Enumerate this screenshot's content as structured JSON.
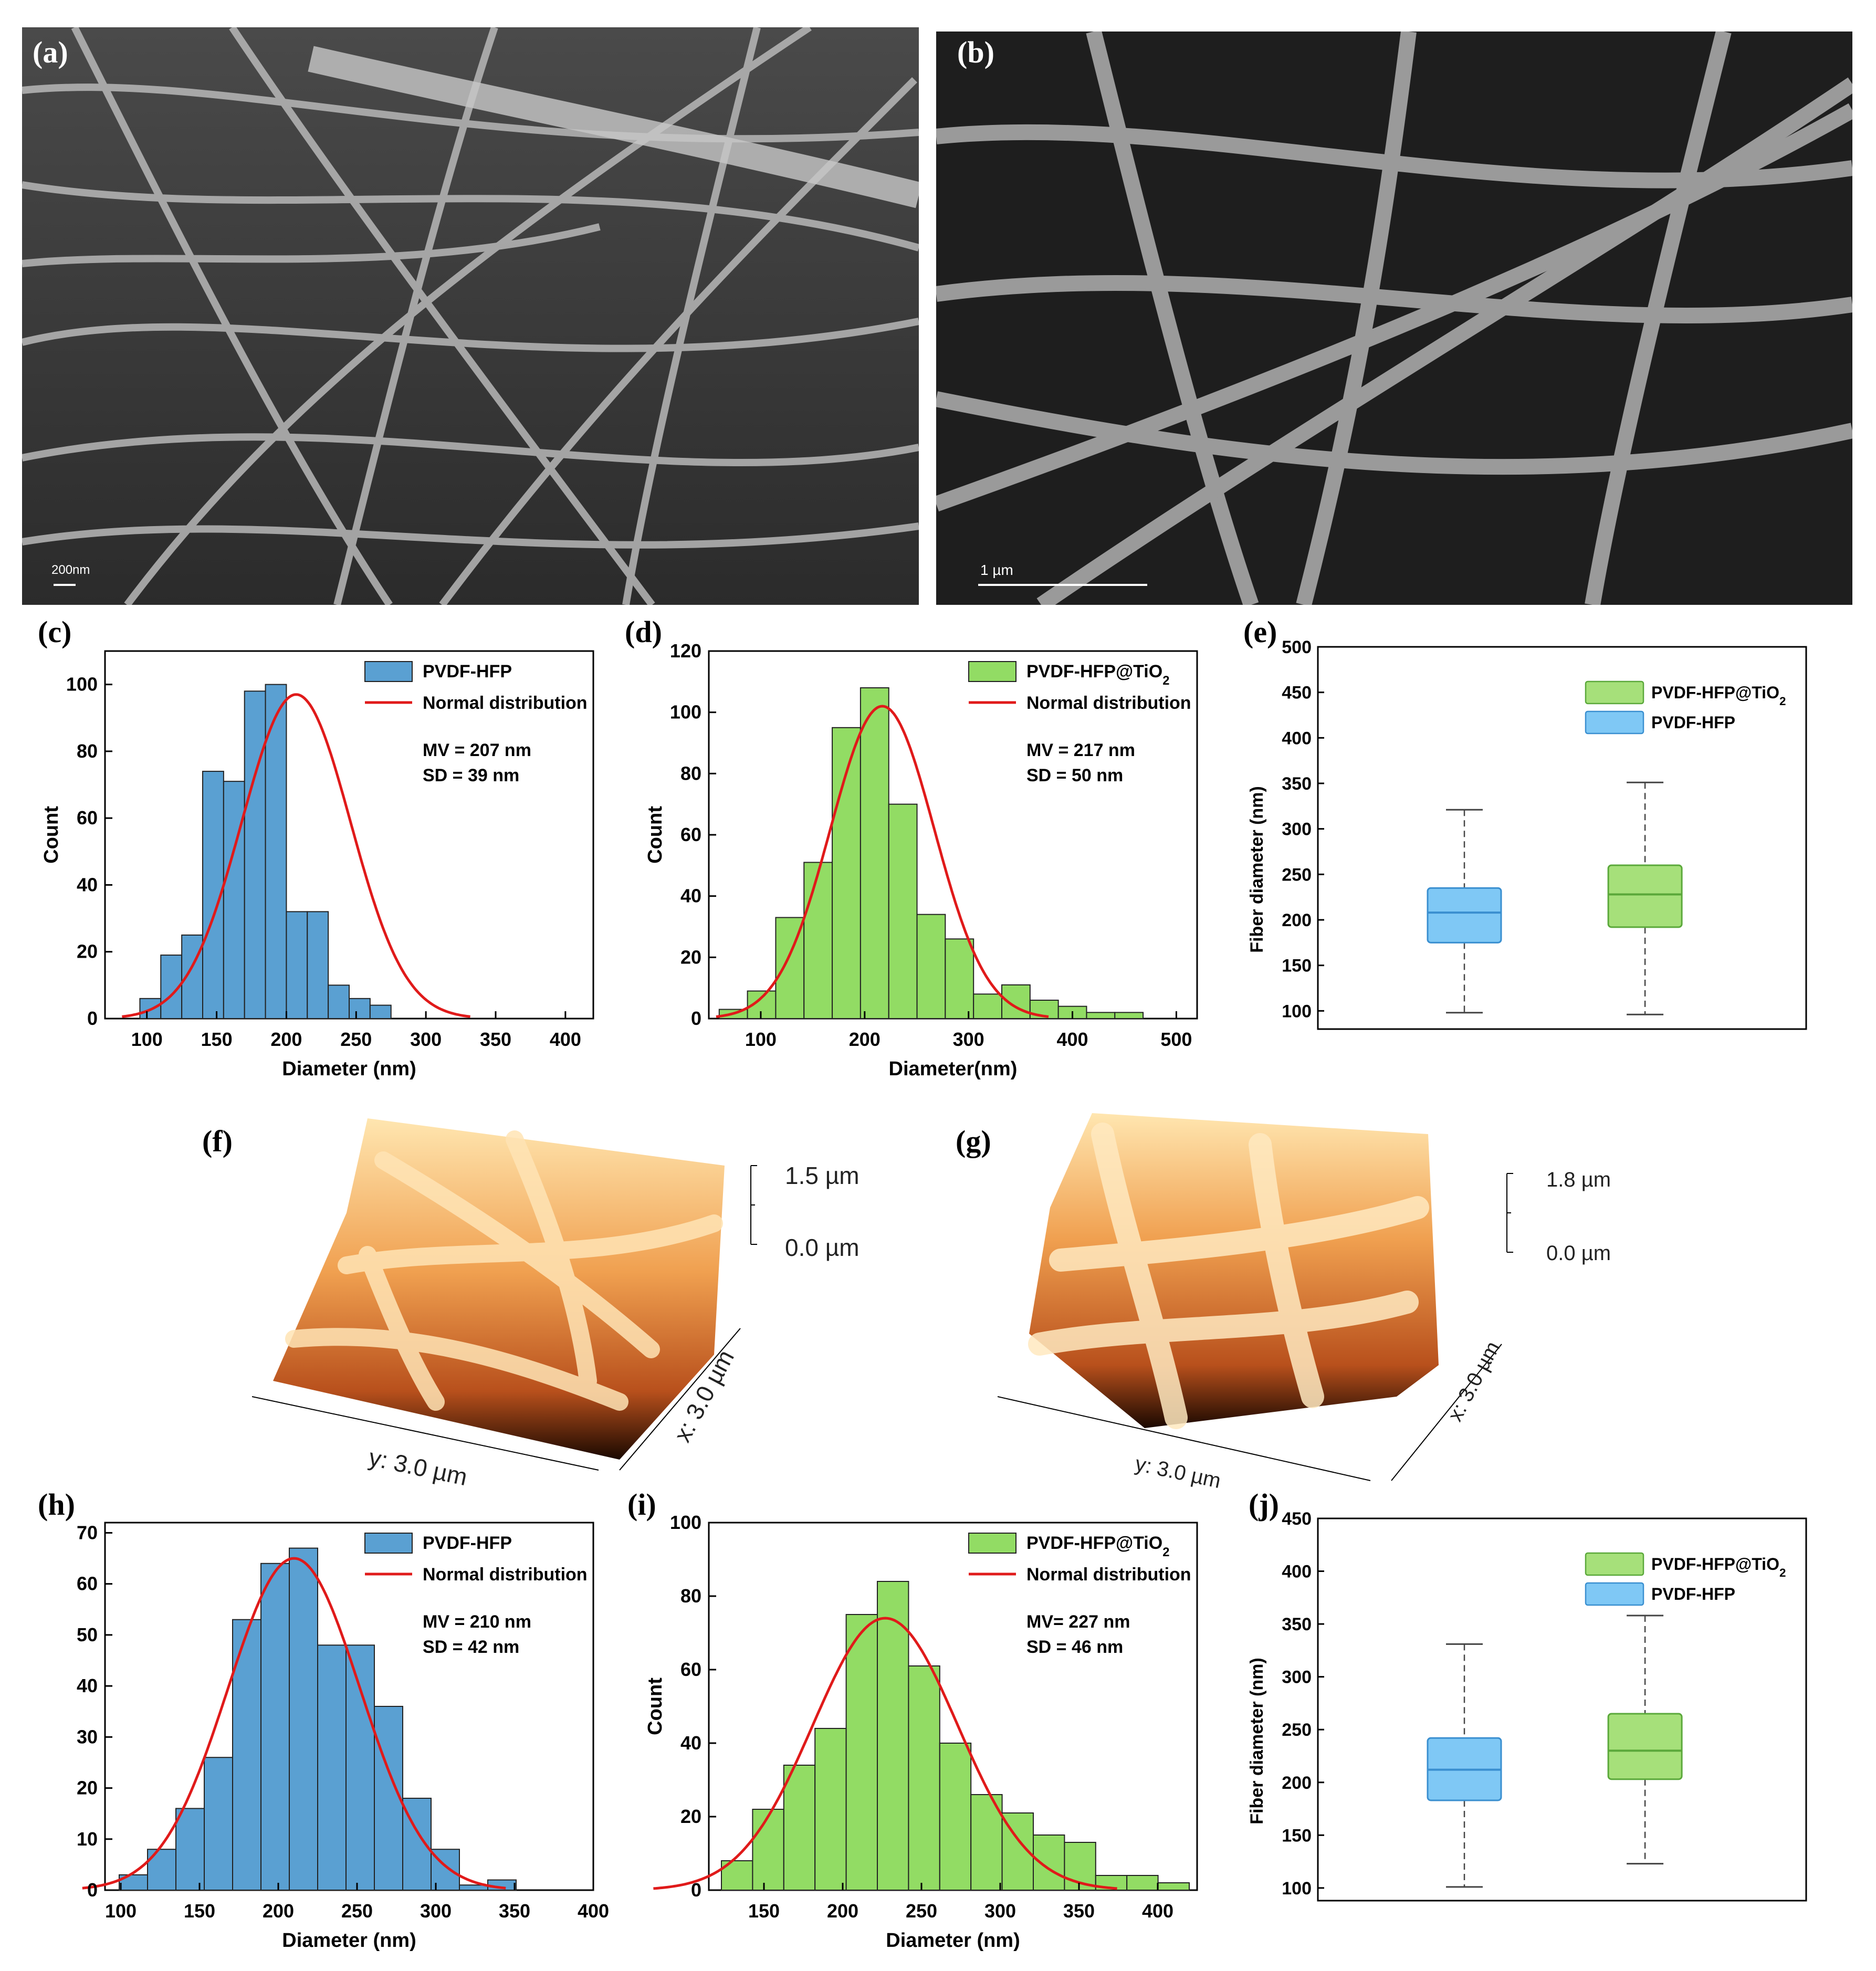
{
  "panel_labels": {
    "a": "(a)",
    "b": "(b)",
    "c": "(c)",
    "d": "(d)",
    "e": "(e)",
    "f": "(f)",
    "g": "(g)",
    "h": "(h)",
    "i": "(i)",
    "j": "(j)"
  },
  "sem": {
    "a": {
      "scale_label": "200nm"
    },
    "b": {
      "scale_label": "1 µm"
    }
  },
  "afm": {
    "f": {
      "z_max": "1.5 µm",
      "z_min": "0.0 µm",
      "x_label": "x: 3.0 µm",
      "y_label": "y: 3.0 µm"
    },
    "g": {
      "z_max": "1.8 µm",
      "z_min": "0.0 µm",
      "x_label": "x: 3.0 µm",
      "y_label": "y: 3.0 µm"
    }
  },
  "colors": {
    "blue": "#5aa0d2",
    "green": "#92dc64",
    "box_blue": "#7fc8f5",
    "box_green": "#a6e07a",
    "fit": "#e01a1a"
  },
  "chart_data": [
    {
      "id": "c",
      "type": "bar",
      "xlabel": "Diameter (nm)",
      "ylabel": "Count",
      "xlim": [
        70,
        420
      ],
      "ylim": [
        0,
        110
      ],
      "xticks": [
        100,
        150,
        200,
        250,
        300,
        350,
        400
      ],
      "yticks": [
        0,
        20,
        40,
        60,
        80,
        100
      ],
      "bin_start": 95,
      "bin_width": 15,
      "values": [
        6,
        19,
        25,
        74,
        71,
        98,
        100,
        32,
        32,
        10,
        6,
        4
      ],
      "series": [
        {
          "name": "PVDF-HFP"
        },
        {
          "name": "Normal distribution",
          "mean": 207,
          "sd": 39,
          "peak": 97
        }
      ],
      "annotations": [
        "MV = 207 nm",
        "SD = 39 nm"
      ]
    },
    {
      "id": "d",
      "type": "bar",
      "xlabel": "Diameter(nm)",
      "ylabel": "Count",
      "xlim": [
        50,
        520
      ],
      "ylim": [
        0,
        120
      ],
      "xticks": [
        100,
        200,
        300,
        400,
        500
      ],
      "yticks": [
        0,
        20,
        40,
        60,
        80,
        100,
        120
      ],
      "bin_start": 60,
      "bin_width": 27.2,
      "values": [
        3,
        9,
        33,
        51,
        95,
        108,
        70,
        34,
        26,
        8,
        11,
        6,
        4,
        2,
        2
      ],
      "series": [
        {
          "name": "PVDF-HFP@TiO",
          "name_sub": "2"
        },
        {
          "name": "Normal distribution",
          "mean": 217,
          "sd": 50,
          "peak": 102
        }
      ],
      "annotations": [
        "MV = 217 nm",
        "SD = 50 nm"
      ]
    },
    {
      "id": "e",
      "type": "box",
      "ylabel": "Fiber diameter (nm)",
      "ylim": [
        80,
        500
      ],
      "yticks": [
        100,
        150,
        200,
        250,
        300,
        350,
        400,
        450,
        500
      ],
      "boxes": [
        {
          "name": "PVDF-HFP",
          "min": 98,
          "q1": 175,
          "median": 208,
          "q3": 235,
          "max": 321
        },
        {
          "name": "PVDF-HFP@TiO",
          "name_sub": "2",
          "min": 96,
          "q1": 192,
          "median": 228,
          "q3": 260,
          "max": 351
        }
      ],
      "legend": [
        {
          "name": "PVDF-HFP@TiO",
          "name_sub": "2"
        },
        {
          "name": "PVDF-HFP"
        }
      ]
    },
    {
      "id": "h",
      "type": "bar",
      "xlabel": "Diameter (nm)",
      "ylabel": "",
      "xlim": [
        90,
        400
      ],
      "ylim": [
        0,
        72
      ],
      "xticks": [
        100,
        150,
        200,
        250,
        300,
        350,
        400
      ],
      "yticks": [
        0,
        10,
        20,
        30,
        40,
        50,
        60,
        70
      ],
      "bin_start": 99,
      "bin_width": 18,
      "values": [
        3,
        8,
        16,
        26,
        53,
        64,
        67,
        48,
        48,
        36,
        18,
        8,
        1,
        2
      ],
      "series": [
        {
          "name": "PVDF-HFP"
        },
        {
          "name": "Normal distribution",
          "mean": 210,
          "sd": 42,
          "peak": 65
        }
      ],
      "annotations": [
        "MV = 210 nm",
        "SD = 42 nm"
      ]
    },
    {
      "id": "i",
      "type": "bar",
      "xlabel": "Diameter (nm)",
      "ylabel": "Count",
      "xlim": [
        115,
        425
      ],
      "ylim": [
        0,
        100
      ],
      "xticks": [
        150,
        200,
        250,
        300,
        350,
        400
      ],
      "yticks": [
        0,
        20,
        40,
        60,
        80,
        100
      ],
      "bin_start": 123,
      "bin_width": 19.8,
      "values": [
        8,
        22,
        34,
        44,
        75,
        84,
        61,
        40,
        26,
        21,
        15,
        13,
        4,
        4,
        2
      ],
      "series": [
        {
          "name": "PVDF-HFP@TiO",
          "name_sub": "2"
        },
        {
          "name": "Normal distribution",
          "mean": 227,
          "sd": 46,
          "peak": 74
        }
      ],
      "annotations": [
        "MV= 227 nm",
        "SD = 46 nm"
      ]
    },
    {
      "id": "j",
      "type": "box",
      "ylabel": "Fiber diameter (nm)",
      "ylim": [
        88,
        450
      ],
      "yticks": [
        100,
        150,
        200,
        250,
        300,
        350,
        400,
        450
      ],
      "boxes": [
        {
          "name": "PVDF-HFP",
          "min": 101,
          "q1": 183,
          "median": 212,
          "q3": 242,
          "max": 331
        },
        {
          "name": "PVDF-HFP@TiO",
          "name_sub": "2",
          "min": 123,
          "q1": 203,
          "median": 230,
          "q3": 265,
          "max": 358
        }
      ],
      "legend": [
        {
          "name": "PVDF-HFP@TiO",
          "name_sub": "2"
        },
        {
          "name": "PVDF-HFP"
        }
      ]
    }
  ]
}
